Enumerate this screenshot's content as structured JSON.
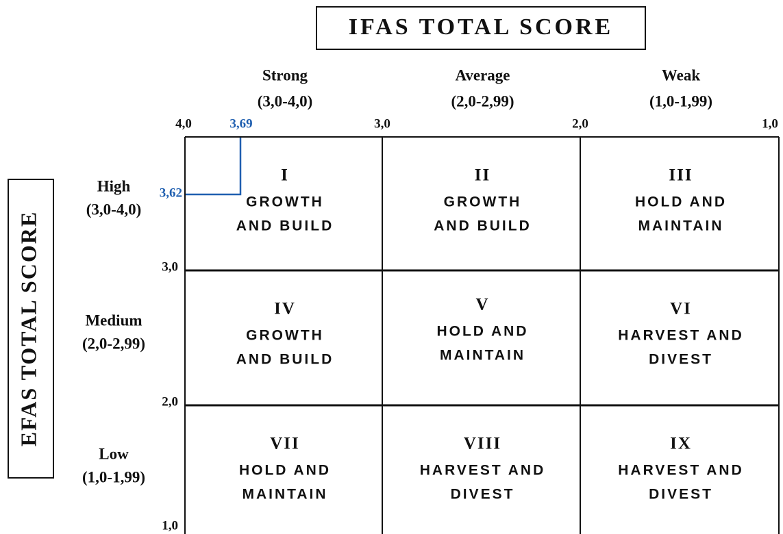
{
  "ifas_title": "IFAS TOTAL SCORE",
  "efas_title": "EFAS TOTAL SCORE",
  "columns": [
    {
      "label": "Strong",
      "range": "(3,0-4,0)"
    },
    {
      "label": "Average",
      "range": "(2,0-2,99)"
    },
    {
      "label": "Weak",
      "range": "(1,0-1,99)"
    }
  ],
  "rows": [
    {
      "label": "High",
      "range": "(3,0-4,0)"
    },
    {
      "label": "Medium",
      "range": "(2,0-2,99)"
    },
    {
      "label": "Low",
      "range": "(1,0-1,99)"
    }
  ],
  "x_ticks": [
    "4,0",
    "3,0",
    "2,0",
    "1,0"
  ],
  "y_ticks": [
    "3,0",
    "2,0",
    "1,0"
  ],
  "cells": [
    {
      "numeral": "I",
      "lines": [
        "GROWTH",
        "AND BUILD"
      ]
    },
    {
      "numeral": "II",
      "lines": [
        "GROWTH",
        "AND BUILD"
      ]
    },
    {
      "numeral": "III",
      "lines": [
        "HOLD AND",
        "MAINTAIN"
      ]
    },
    {
      "numeral": "IV",
      "lines": [
        "GROWTH",
        "AND BUILD"
      ]
    },
    {
      "numeral": "V",
      "lines": [
        "HOLD AND",
        "MAINTAIN"
      ]
    },
    {
      "numeral": "VI",
      "lines": [
        "HARVEST AND",
        "DIVEST"
      ]
    },
    {
      "numeral": "VII",
      "lines": [
        "HOLD AND",
        "MAINTAIN"
      ]
    },
    {
      "numeral": "VIII",
      "lines": [
        "HARVEST AND",
        "DIVEST"
      ]
    },
    {
      "numeral": "IX",
      "lines": [
        "HARVEST AND",
        "DIVEST"
      ]
    }
  ],
  "marker": {
    "x": "3,69",
    "y": "3,62"
  }
}
